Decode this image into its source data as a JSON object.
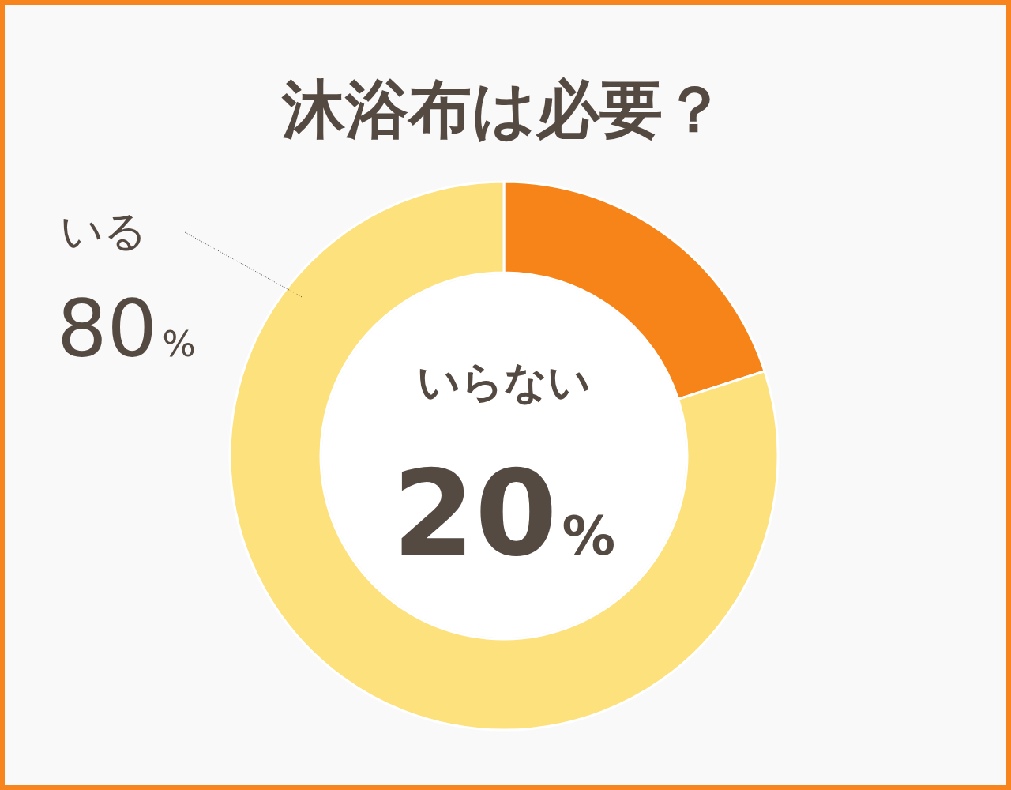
{
  "chart_data": {
    "type": "donut",
    "title": "沐浴布は必要？",
    "categories": [
      "いらない",
      "いる"
    ],
    "values": [
      20,
      80
    ],
    "colors": [
      "#f78419",
      "#fde17c"
    ],
    "value_labels": [
      "20%",
      "80%"
    ]
  }
}
